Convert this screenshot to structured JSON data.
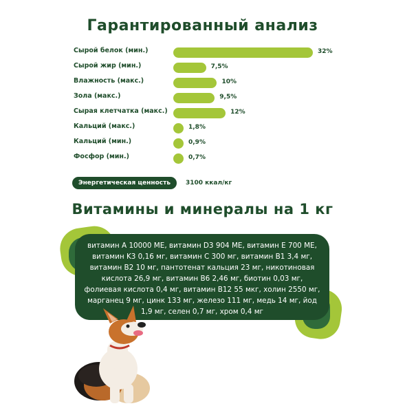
{
  "title": "Гарантированный анализ",
  "chart_data": {
    "type": "bar",
    "orientation": "horizontal",
    "categories": [
      "Сырой белок (мин.)",
      "Сырой жир (мин.)",
      "Влажность (макс.)",
      "Зола (макс.)",
      "Сырая клетчатка (макс.)",
      "Кальций (макс.)",
      "Кальций (мин.)",
      "Фосфор (мин.)"
    ],
    "values": [
      32,
      7.5,
      10,
      9.5,
      12,
      1.8,
      0.9,
      0.7
    ],
    "value_labels": [
      "32%",
      "7,5%",
      "10%",
      "9,5%",
      "12%",
      "1,8%",
      "0,9%",
      "0,7%"
    ],
    "bar_color": "#a4c639",
    "label_color": "#1f4d2b"
  },
  "energy": {
    "label": "Энергетическая ценность",
    "value": "3100 ккал/кг"
  },
  "vitamins": {
    "title": "Витамины и минералы на 1 кг",
    "lines": [
      "витамин A 10000 МЕ, витамин D3 904 МЕ, витамин E 700 МЕ,",
      "витамин K3 0,16 мг, витамин C 300 мг, витамин B1 3,4 мг,",
      "витамин B2 10 мг, пантотенат кальция 23 мг, никотиновая",
      "кислота 26,9 мг, витамин B6 2,46 мг, биотин 0,03 мг,",
      "фолиевая кислота 0,4 мг, витамин B12 55 мкг, холин 2550 мг,",
      "марганец 9 мг, цинк 133 мг, железо 111 мг, медь 14 мг, йод",
      "1,9 мг, селен 0,7 мг, хром 0,4 мг"
    ]
  },
  "colors": {
    "dark_green": "#1f4d2b",
    "light_green": "#a4c639"
  }
}
